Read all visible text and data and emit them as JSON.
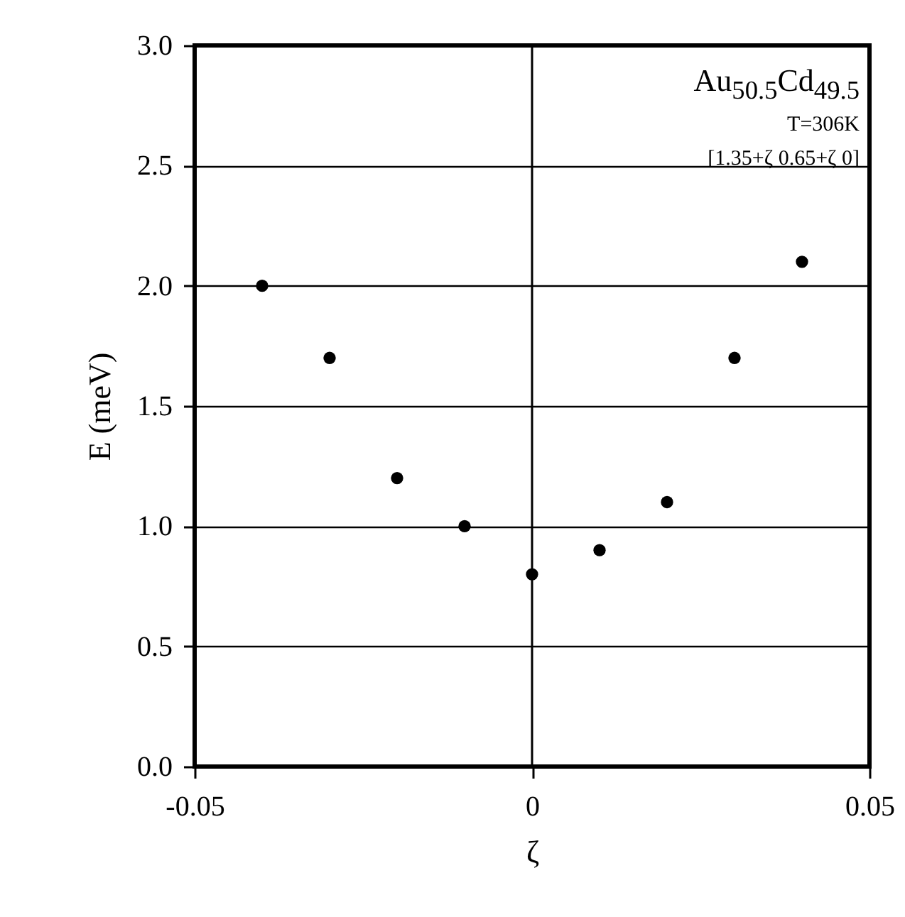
{
  "chart_data": {
    "type": "scatter",
    "xlabel": "ζ",
    "ylabel": "E (meV)",
    "annotations": [
      "Au$_{50.5}$Cd$_{49.5}$",
      "T=306K",
      "[1.35+ζ 0.65+ζ 0]"
    ],
    "x": [
      -0.04,
      -0.03,
      -0.02,
      -0.01,
      0,
      0.01,
      0.02,
      0.03,
      0.04
    ],
    "series": [
      {
        "color": "#000000",
        "values": [
          2.0,
          1.7,
          1.2,
          1.0,
          0.8,
          0.9,
          1.1,
          1.7,
          2.1
        ]
      }
    ],
    "marker": "circle",
    "xlim": [
      -0.05,
      0.05
    ],
    "xticks": [
      -0.05,
      0,
      0.05
    ],
    "ylim": [
      0,
      3
    ],
    "yticks": [
      {
        "value": 0,
        "label": "0.0"
      },
      0.5,
      {
        "value": 1,
        "label": "1.0"
      },
      1.5,
      {
        "value": 2,
        "label": "2.0"
      },
      2.5,
      {
        "value": 3,
        "label": "3.0"
      }
    ],
    "grid": "y",
    "ref_lines": [
      {
        "axis": "x",
        "value": 0,
        "color": "#000000"
      }
    ]
  }
}
